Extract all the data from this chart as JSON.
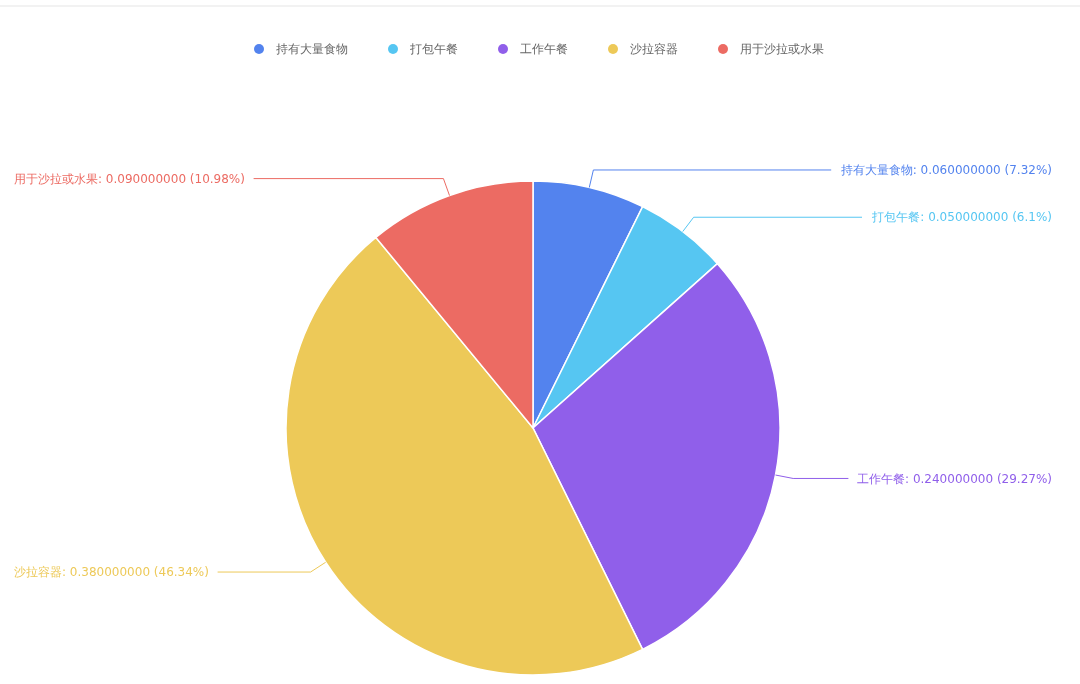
{
  "chart_data": {
    "type": "pie",
    "categories": [
      "持有大量食物",
      "打包午餐",
      "工作午餐",
      "沙拉容器",
      "用于沙拉或水果"
    ],
    "values": [
      0.06,
      0.05,
      0.24,
      0.38,
      0.09
    ],
    "colors": [
      "#5383ee",
      "#56c6f2",
      "#905fea",
      "#edc958",
      "#ec6b63"
    ],
    "value_labels": [
      "持有大量食物: 0.060000000 (7.32%)",
      "打包午餐: 0.050000000 (6.1%)",
      "工作午餐: 0.240000000 (29.27%)",
      "沙拉容器: 0.380000000 (46.34%)",
      "用于沙拉或水果: 0.090000000 (10.98%)"
    ],
    "legend": "top"
  }
}
